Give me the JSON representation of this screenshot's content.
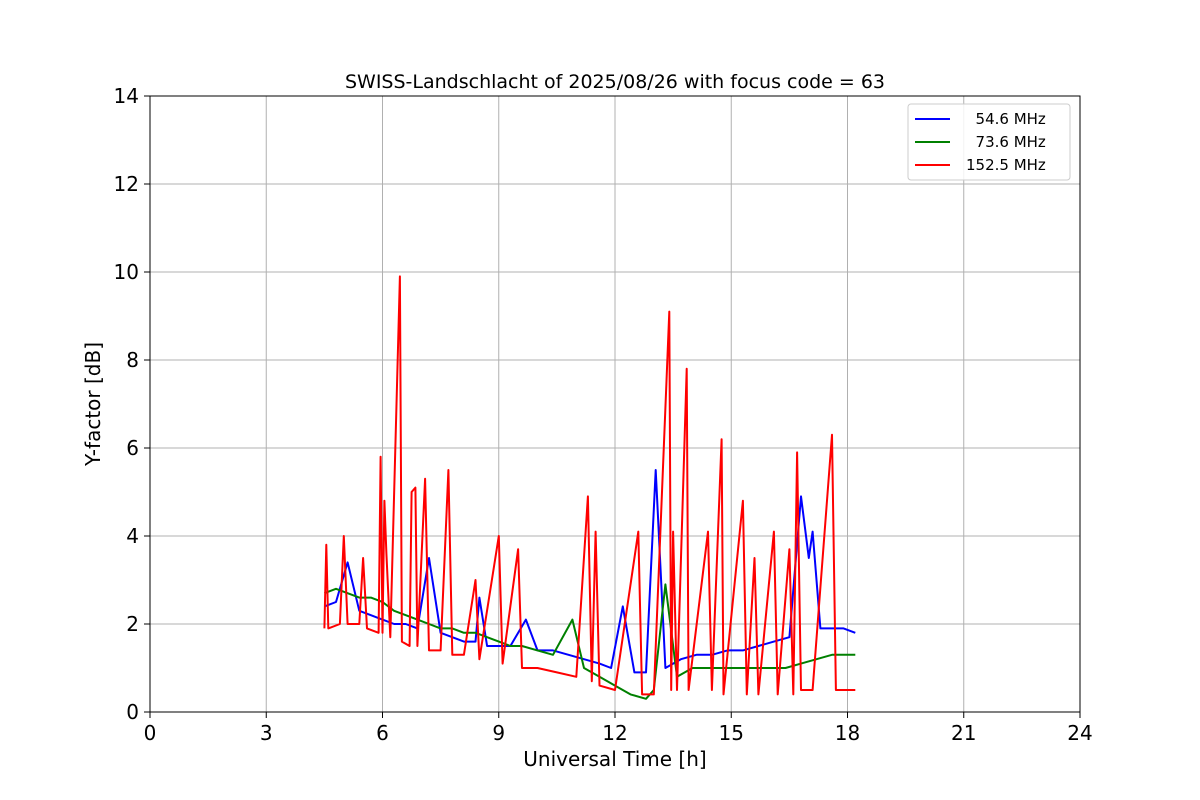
{
  "chart_data": {
    "type": "line",
    "title": "SWISS-Landschlacht of 2025/08/26 with focus code = 63",
    "xlabel": "Universal Time [h]",
    "ylabel": "Y-factor [dB]",
    "xlim": [
      0,
      24
    ],
    "ylim": [
      0,
      14
    ],
    "xticks": [
      0,
      3,
      6,
      9,
      12,
      15,
      18,
      21,
      24
    ],
    "yticks": [
      0,
      2,
      4,
      6,
      8,
      10,
      12,
      14
    ],
    "grid": true,
    "legend_position": "top-right",
    "series": [
      {
        "name": "  54.6 MHz",
        "color": "#0000ff",
        "points": [
          [
            4.5,
            2.4
          ],
          [
            4.8,
            2.5
          ],
          [
            5.1,
            3.4
          ],
          [
            5.4,
            2.3
          ],
          [
            5.7,
            2.2
          ],
          [
            6.0,
            2.1
          ],
          [
            6.3,
            2.0
          ],
          [
            6.6,
            2.0
          ],
          [
            6.9,
            1.9
          ],
          [
            7.2,
            3.5
          ],
          [
            7.5,
            1.8
          ],
          [
            7.8,
            1.7
          ],
          [
            8.1,
            1.6
          ],
          [
            8.4,
            1.6
          ],
          [
            8.5,
            2.6
          ],
          [
            8.7,
            1.5
          ],
          [
            9.0,
            1.5
          ],
          [
            9.3,
            1.5
          ],
          [
            9.7,
            2.1
          ],
          [
            10.0,
            1.4
          ],
          [
            10.4,
            1.4
          ],
          [
            10.8,
            1.3
          ],
          [
            11.2,
            1.2
          ],
          [
            11.6,
            1.1
          ],
          [
            11.9,
            1.0
          ],
          [
            12.2,
            2.4
          ],
          [
            12.5,
            0.9
          ],
          [
            12.8,
            0.9
          ],
          [
            13.05,
            5.5
          ],
          [
            13.3,
            1.0
          ],
          [
            13.7,
            1.2
          ],
          [
            14.1,
            1.3
          ],
          [
            14.5,
            1.3
          ],
          [
            14.9,
            1.4
          ],
          [
            15.3,
            1.4
          ],
          [
            15.7,
            1.5
          ],
          [
            16.1,
            1.6
          ],
          [
            16.5,
            1.7
          ],
          [
            16.8,
            4.9
          ],
          [
            17.0,
            3.5
          ],
          [
            17.1,
            4.1
          ],
          [
            17.3,
            1.9
          ],
          [
            17.6,
            1.9
          ],
          [
            17.9,
            1.9
          ],
          [
            18.2,
            1.8
          ]
        ]
      },
      {
        "name": "  73.6 MHz",
        "color": "#008000",
        "points": [
          [
            4.5,
            2.7
          ],
          [
            4.8,
            2.8
          ],
          [
            5.1,
            2.7
          ],
          [
            5.4,
            2.6
          ],
          [
            5.7,
            2.6
          ],
          [
            6.0,
            2.5
          ],
          [
            6.3,
            2.3
          ],
          [
            6.6,
            2.2
          ],
          [
            6.9,
            2.1
          ],
          [
            7.2,
            2.0
          ],
          [
            7.5,
            1.9
          ],
          [
            7.8,
            1.9
          ],
          [
            8.1,
            1.8
          ],
          [
            8.4,
            1.8
          ],
          [
            8.7,
            1.7
          ],
          [
            9.0,
            1.6
          ],
          [
            9.3,
            1.5
          ],
          [
            9.6,
            1.5
          ],
          [
            10.0,
            1.4
          ],
          [
            10.4,
            1.3
          ],
          [
            10.9,
            2.1
          ],
          [
            11.2,
            1.0
          ],
          [
            11.6,
            0.8
          ],
          [
            12.0,
            0.6
          ],
          [
            12.4,
            0.4
          ],
          [
            12.8,
            0.3
          ],
          [
            13.0,
            0.5
          ],
          [
            13.3,
            2.9
          ],
          [
            13.6,
            0.8
          ],
          [
            14.0,
            1.0
          ],
          [
            14.4,
            1.0
          ],
          [
            14.8,
            1.0
          ],
          [
            15.2,
            1.0
          ],
          [
            15.6,
            1.0
          ],
          [
            16.0,
            1.0
          ],
          [
            16.4,
            1.0
          ],
          [
            16.8,
            1.1
          ],
          [
            17.2,
            1.2
          ],
          [
            17.6,
            1.3
          ],
          [
            18.0,
            1.3
          ],
          [
            18.2,
            1.3
          ]
        ]
      },
      {
        "name": "152.5 MHz",
        "color": "#ff0000",
        "points": [
          [
            4.5,
            1.9
          ],
          [
            4.55,
            3.8
          ],
          [
            4.6,
            1.9
          ],
          [
            4.9,
            2.0
          ],
          [
            5.0,
            4.0
          ],
          [
            5.1,
            2.0
          ],
          [
            5.4,
            2.0
          ],
          [
            5.5,
            3.5
          ],
          [
            5.6,
            1.9
          ],
          [
            5.9,
            1.8
          ],
          [
            5.95,
            5.8
          ],
          [
            6.0,
            1.8
          ],
          [
            6.05,
            4.8
          ],
          [
            6.1,
            3.6
          ],
          [
            6.2,
            1.7
          ],
          [
            6.45,
            9.9
          ],
          [
            6.5,
            1.6
          ],
          [
            6.7,
            1.5
          ],
          [
            6.75,
            5.0
          ],
          [
            6.85,
            5.1
          ],
          [
            6.9,
            1.5
          ],
          [
            7.1,
            5.3
          ],
          [
            7.2,
            1.4
          ],
          [
            7.5,
            1.4
          ],
          [
            7.7,
            5.5
          ],
          [
            7.8,
            1.3
          ],
          [
            8.1,
            1.3
          ],
          [
            8.4,
            3.0
          ],
          [
            8.5,
            1.2
          ],
          [
            9.0,
            4.0
          ],
          [
            9.1,
            1.1
          ],
          [
            9.5,
            3.7
          ],
          [
            9.6,
            1.0
          ],
          [
            10.0,
            1.0
          ],
          [
            10.5,
            0.9
          ],
          [
            11.0,
            0.8
          ],
          [
            11.3,
            4.9
          ],
          [
            11.4,
            0.7
          ],
          [
            11.5,
            4.1
          ],
          [
            11.6,
            0.6
          ],
          [
            12.0,
            0.5
          ],
          [
            12.6,
            4.1
          ],
          [
            12.7,
            0.4
          ],
          [
            13.0,
            0.4
          ],
          [
            13.4,
            9.1
          ],
          [
            13.45,
            0.5
          ],
          [
            13.5,
            4.1
          ],
          [
            13.6,
            0.5
          ],
          [
            13.85,
            7.8
          ],
          [
            13.9,
            0.5
          ],
          [
            14.4,
            4.1
          ],
          [
            14.5,
            0.5
          ],
          [
            14.75,
            6.2
          ],
          [
            14.8,
            0.4
          ],
          [
            15.3,
            4.8
          ],
          [
            15.4,
            0.4
          ],
          [
            15.6,
            3.5
          ],
          [
            15.7,
            0.4
          ],
          [
            16.1,
            4.1
          ],
          [
            16.2,
            0.4
          ],
          [
            16.5,
            3.7
          ],
          [
            16.6,
            0.4
          ],
          [
            16.7,
            5.9
          ],
          [
            16.8,
            0.5
          ],
          [
            17.1,
            0.5
          ],
          [
            17.6,
            6.3
          ],
          [
            17.7,
            0.5
          ],
          [
            18.0,
            0.5
          ],
          [
            18.2,
            0.5
          ]
        ]
      }
    ]
  }
}
